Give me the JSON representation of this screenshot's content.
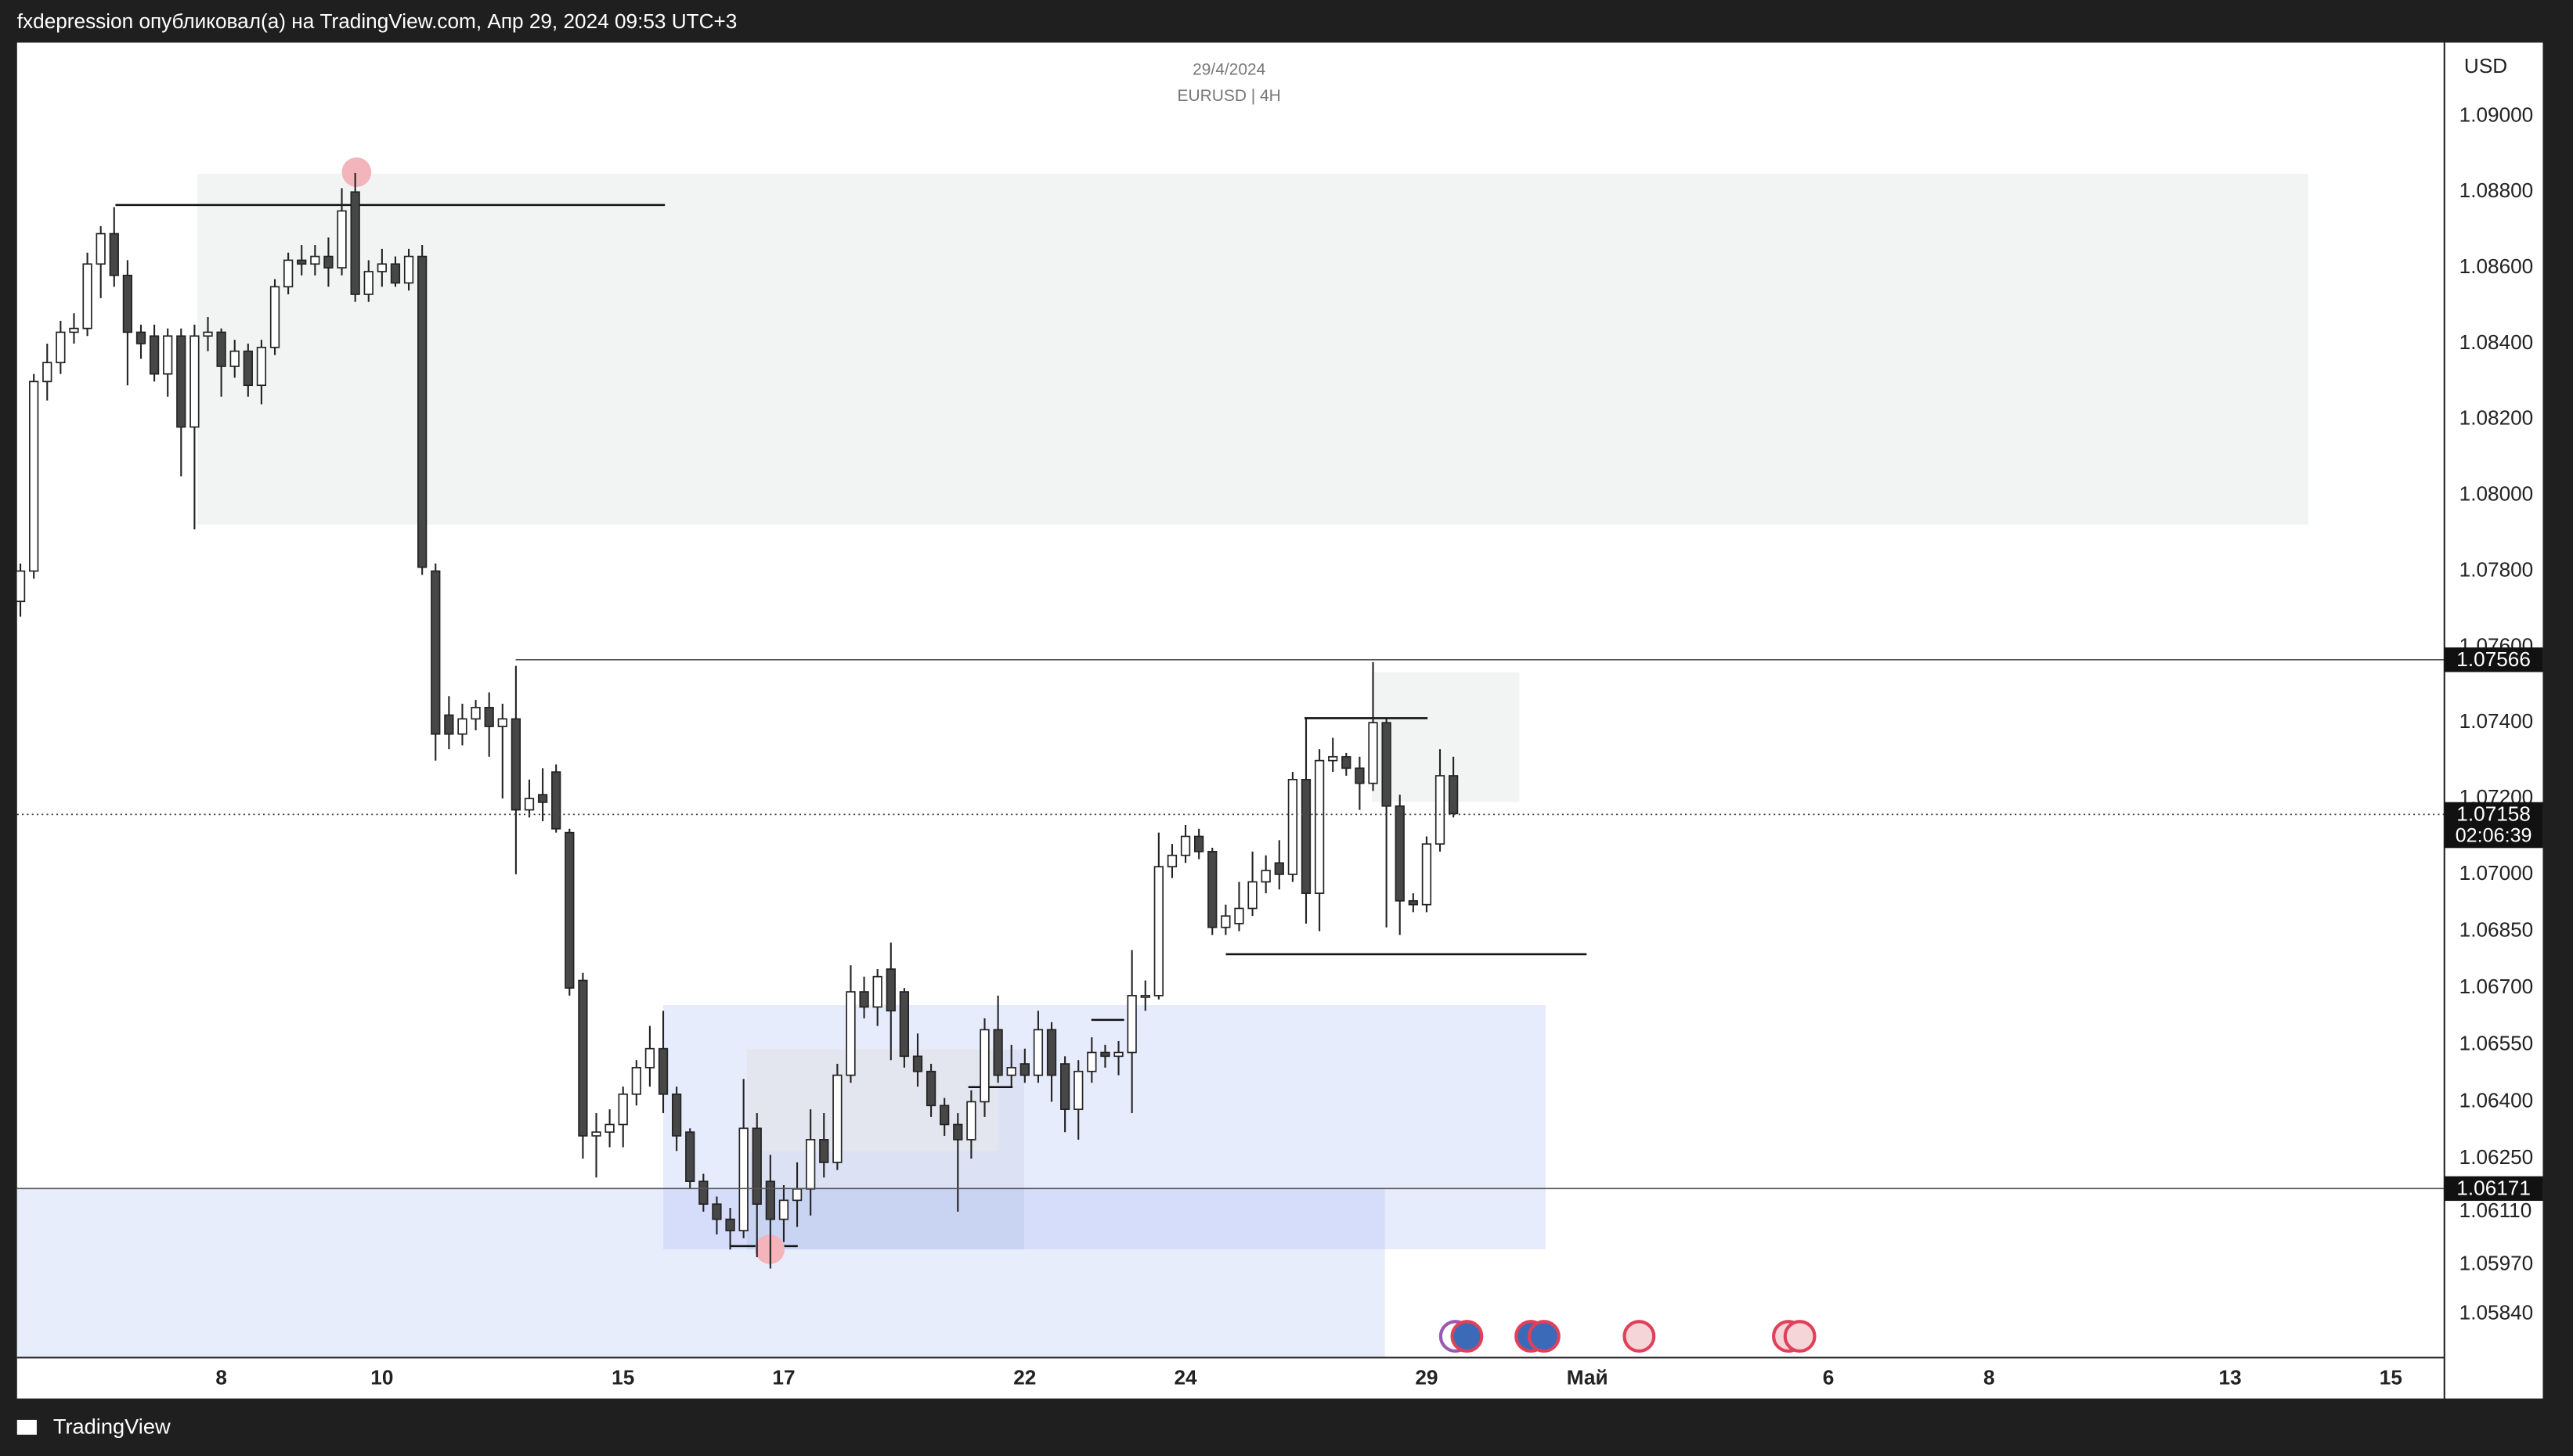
{
  "header": {
    "text": "fxdepression опубликовал(а) на TradingView.com, Апр 29, 2024 09:53 UTC+3"
  },
  "footer": {
    "brand": "TradingView"
  },
  "chart_data": {
    "type": "candlestick",
    "title": "29/4/2024",
    "subtitle": "EURUSD | 4H",
    "y_axis_label": "USD",
    "up_color": "#ffffff",
    "down_color": "#474747",
    "wick_color": "#222222",
    "grid": false,
    "xlim": [
      -0.25,
      181
    ],
    "ylim": [
      1.05725,
      1.09194
    ],
    "xticks": [
      {
        "value": 15,
        "label": "8"
      },
      {
        "value": 27,
        "label": "10"
      },
      {
        "value": 45,
        "label": "15"
      },
      {
        "value": 57,
        "label": "17"
      },
      {
        "value": 75,
        "label": "22"
      },
      {
        "value": 87,
        "label": "24"
      },
      {
        "value": 105,
        "label": "29"
      },
      {
        "value": 117,
        "label": "Май"
      },
      {
        "value": 135,
        "label": "6"
      },
      {
        "value": 147,
        "label": "8"
      },
      {
        "value": 165,
        "label": "13"
      },
      {
        "value": 177,
        "label": "15"
      }
    ],
    "yticks": [
      {
        "value": 1.09,
        "label": "1.09000"
      },
      {
        "value": 1.088,
        "label": "1.08800"
      },
      {
        "value": 1.086,
        "label": "1.08600"
      },
      {
        "value": 1.084,
        "label": "1.08400"
      },
      {
        "value": 1.082,
        "label": "1.08200"
      },
      {
        "value": 1.08,
        "label": "1.08000"
      },
      {
        "value": 1.078,
        "label": "1.07800"
      },
      {
        "value": 1.076,
        "label": "1.07600"
      },
      {
        "value": 1.074,
        "label": "1.07400"
      },
      {
        "value": 1.072,
        "label": "1.07200"
      },
      {
        "value": 1.07,
        "label": "1.07000"
      },
      {
        "value": 1.0685,
        "label": "1.06850"
      },
      {
        "value": 1.067,
        "label": "1.06700"
      },
      {
        "value": 1.0655,
        "label": "1.06550"
      },
      {
        "value": 1.064,
        "label": "1.06400"
      },
      {
        "value": 1.0625,
        "label": "1.06250"
      },
      {
        "value": 1.0611,
        "label": "1.06110"
      },
      {
        "value": 1.0597,
        "label": "1.05970"
      },
      {
        "value": 1.0584,
        "label": "1.05840"
      }
    ],
    "price_lines": [
      {
        "value": 1.07566,
        "style": "solid"
      },
      {
        "value": 1.06171,
        "style": "solid"
      }
    ],
    "last_price": {
      "value": 1.07158,
      "countdown": "02:06:39"
    },
    "open": [
      1.0772,
      1.078,
      1.083,
      1.0835,
      1.0843,
      1.0844,
      1.0861,
      1.0869,
      1.0858,
      1.0843,
      1.0842,
      1.0832,
      1.0842,
      1.0818,
      1.0842,
      1.0843,
      1.0834,
      1.0838,
      1.0829,
      1.0839,
      1.0855,
      1.0862,
      1.0861,
      1.0863,
      1.086,
      1.088,
      1.0853,
      1.0859,
      1.0861,
      1.0856,
      1.0863,
      1.078,
      1.0742,
      1.0737,
      1.0741,
      1.0744,
      1.0739,
      1.0741,
      1.0717,
      1.0721,
      1.0727,
      1.0711,
      1.0672,
      1.0631,
      1.0632,
      1.0634,
      1.0642,
      1.0649,
      1.0654,
      1.0642,
      1.0632,
      1.0619,
      1.0613,
      1.0609,
      1.0606,
      1.0633,
      1.0619,
      1.0609,
      1.0614,
      1.0617,
      1.063,
      1.0624,
      1.0647,
      1.0669,
      1.0665,
      1.0675,
      1.0669,
      1.0652,
      1.0648,
      1.0639,
      1.0634,
      1.063,
      1.064,
      1.0659,
      1.0647,
      1.065,
      1.0647,
      1.0659,
      1.065,
      1.0638,
      1.0648,
      1.0653,
      1.0652,
      1.0653,
      1.0668,
      1.0668,
      1.0702,
      1.0705,
      1.071,
      1.0706,
      1.0686,
      1.0687,
      1.0691,
      1.0698,
      1.0703,
      1.07,
      1.0725,
      1.0695,
      1.073,
      1.0731,
      1.0728,
      1.0724,
      1.074,
      1.0718,
      1.0693,
      1.0692,
      1.0708,
      1.0726
    ],
    "high": [
      1.0782,
      1.0832,
      1.084,
      1.0846,
      1.0848,
      1.0864,
      1.0871,
      1.0876,
      1.0862,
      1.0845,
      1.0845,
      1.0844,
      1.0844,
      1.0845,
      1.0847,
      1.0844,
      1.0841,
      1.084,
      1.0841,
      1.0857,
      1.0864,
      1.0866,
      1.0866,
      1.0868,
      1.0881,
      1.0885,
      1.0862,
      1.0865,
      1.0863,
      1.0865,
      1.0866,
      1.0782,
      1.0747,
      1.0745,
      1.0746,
      1.0748,
      1.0745,
      1.0755,
      1.0725,
      1.0728,
      1.0729,
      1.0712,
      1.0674,
      1.0637,
      1.0638,
      1.0644,
      1.0651,
      1.066,
      1.0664,
      1.0644,
      1.0633,
      1.0621,
      1.0615,
      1.0612,
      1.0646,
      1.0637,
      1.0626,
      1.0618,
      1.0624,
      1.0638,
      1.0637,
      1.065,
      1.0676,
      1.0673,
      1.0675,
      1.0682,
      1.067,
      1.0658,
      1.065,
      1.0641,
      1.0637,
      1.0643,
      1.0662,
      1.0668,
      1.0655,
      1.0654,
      1.0664,
      1.0661,
      1.0652,
      1.0651,
      1.0657,
      1.0655,
      1.0656,
      1.068,
      1.0672,
      1.0711,
      1.0708,
      1.0713,
      1.0712,
      1.0707,
      1.0692,
      1.0698,
      1.0706,
      1.0705,
      1.0709,
      1.0727,
      1.0741,
      1.0733,
      1.0736,
      1.0732,
      1.0731,
      1.0756,
      1.0741,
      1.0721,
      1.0695,
      1.071,
      1.0733,
      1.0731
    ],
    "low": [
      1.0768,
      1.0778,
      1.0825,
      1.0832,
      1.084,
      1.0842,
      1.0852,
      1.0855,
      1.0829,
      1.0836,
      1.083,
      1.0826,
      1.0805,
      1.0791,
      1.0838,
      1.0826,
      1.0831,
      1.0826,
      1.0824,
      1.0837,
      1.0853,
      1.0858,
      1.0858,
      1.0855,
      1.0858,
      1.0851,
      1.0851,
      1.0855,
      1.0855,
      1.0854,
      1.0779,
      1.073,
      1.0733,
      1.0734,
      1.0738,
      1.0731,
      1.072,
      1.07,
      1.0715,
      1.0714,
      1.0711,
      1.0668,
      1.0625,
      1.062,
      1.0628,
      1.0628,
      1.0639,
      1.0644,
      1.0637,
      1.0627,
      1.0617,
      1.0611,
      1.0605,
      1.0601,
      1.0604,
      1.0599,
      1.0596,
      1.0603,
      1.0607,
      1.061,
      1.062,
      1.0622,
      1.0645,
      1.0662,
      1.066,
      1.0651,
      1.0649,
      1.0644,
      1.0636,
      1.0631,
      1.0611,
      1.0625,
      1.0636,
      1.0645,
      1.0644,
      1.0645,
      1.0645,
      1.064,
      1.0632,
      1.063,
      1.0645,
      1.0649,
      1.0647,
      1.0637,
      1.0664,
      1.0667,
      1.0699,
      1.0703,
      1.0704,
      1.0684,
      1.0684,
      1.0685,
      1.0689,
      1.0695,
      1.0696,
      1.0698,
      1.0687,
      1.0685,
      1.0727,
      1.0726,
      1.0717,
      1.0722,
      1.0686,
      1.0684,
      1.069,
      1.069,
      1.0706,
      1.0715
    ],
    "close": [
      1.078,
      1.083,
      1.0835,
      1.0843,
      1.0844,
      1.0861,
      1.0869,
      1.0858,
      1.0843,
      1.084,
      1.0832,
      1.0842,
      1.0818,
      1.0842,
      1.0843,
      1.0834,
      1.0838,
      1.0829,
      1.0839,
      1.0855,
      1.0862,
      1.0861,
      1.0863,
      1.086,
      1.0875,
      1.0853,
      1.0859,
      1.0861,
      1.0856,
      1.0863,
      1.0781,
      1.0737,
      1.0737,
      1.0741,
      1.0744,
      1.0739,
      1.0741,
      1.0717,
      1.072,
      1.0719,
      1.0712,
      1.067,
      1.0631,
      1.0632,
      1.0634,
      1.0642,
      1.0649,
      1.0654,
      1.0642,
      1.0631,
      1.0619,
      1.0613,
      1.0609,
      1.0606,
      1.0633,
      1.0613,
      1.0609,
      1.0614,
      1.0617,
      1.063,
      1.0624,
      1.0647,
      1.0669,
      1.0665,
      1.0673,
      1.0664,
      1.0652,
      1.0648,
      1.0639,
      1.0634,
      1.063,
      1.064,
      1.0659,
      1.0647,
      1.0649,
      1.0647,
      1.0659,
      1.0647,
      1.0638,
      1.0648,
      1.0653,
      1.0652,
      1.0653,
      1.0668,
      1.0668,
      1.0702,
      1.0705,
      1.071,
      1.0706,
      1.0686,
      1.0689,
      1.0691,
      1.0698,
      1.0701,
      1.07,
      1.0725,
      1.0695,
      1.073,
      1.0731,
      1.0728,
      1.0724,
      1.074,
      1.0718,
      1.0693,
      1.0692,
      1.0708,
      1.0726,
      1.0716
    ]
  }
}
